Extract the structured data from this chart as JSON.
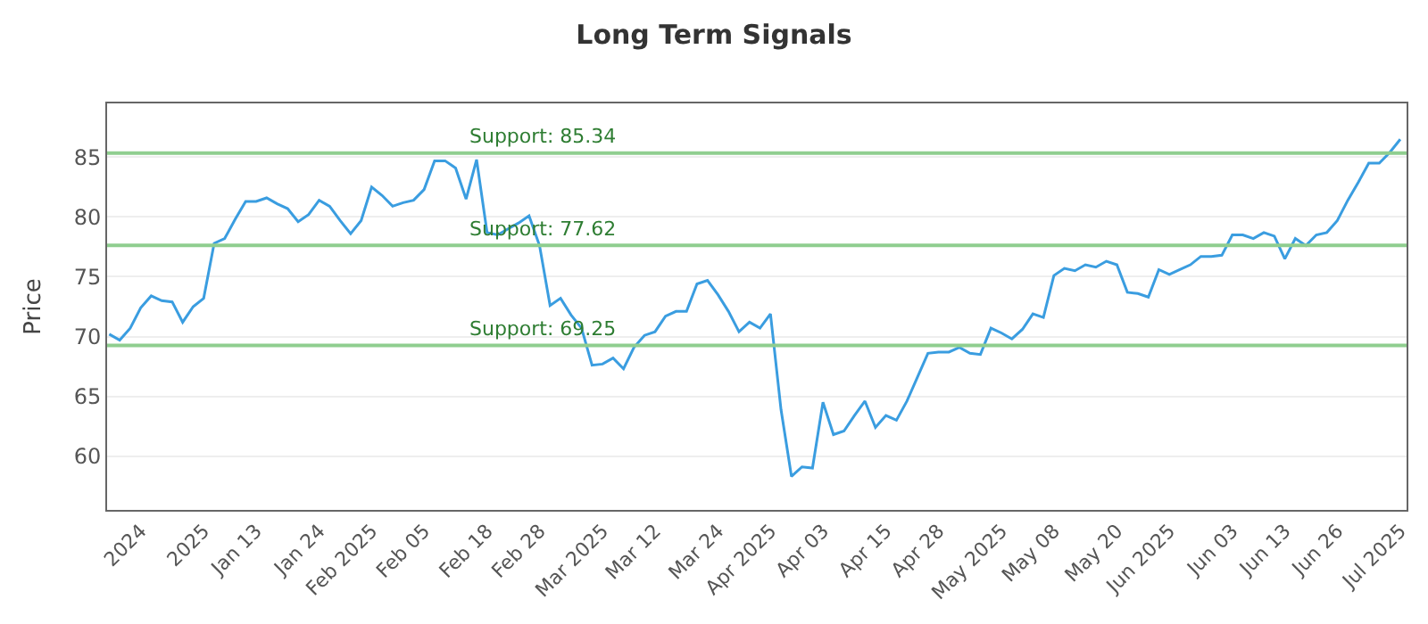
{
  "chart_data": {
    "type": "line",
    "title": "Long Term Signals",
    "ylabel": "Price",
    "categories": [
      null,
      null,
      null,
      "2024",
      null,
      null,
      null,
      null,
      null,
      "2025",
      null,
      null,
      null,
      null,
      "Jan 13",
      null,
      null,
      null,
      null,
      null,
      "Jan 24",
      null,
      null,
      null,
      null,
      "Feb 2025",
      null,
      null,
      null,
      null,
      "Feb 05",
      null,
      null,
      null,
      null,
      null,
      "Feb 18",
      null,
      null,
      null,
      null,
      "Feb 28",
      null,
      null,
      null,
      null,
      null,
      "Mar 2025",
      null,
      null,
      null,
      null,
      "Mar 12",
      null,
      null,
      null,
      null,
      null,
      "Mar 24",
      null,
      null,
      null,
      null,
      "Apr 2025",
      null,
      null,
      null,
      null,
      "Apr 03",
      null,
      null,
      null,
      null,
      null,
      "Apr 15",
      null,
      null,
      null,
      null,
      "Apr 28",
      null,
      null,
      null,
      null,
      null,
      "May 2025",
      null,
      null,
      null,
      null,
      "May 08",
      null,
      null,
      null,
      null,
      null,
      "May 20",
      null,
      null,
      null,
      null,
      "Jun 2025",
      null,
      null,
      null,
      null,
      null,
      "Jun 03",
      null,
      null,
      null,
      null,
      "Jun 13",
      null,
      null,
      null,
      null,
      "Jun 26",
      null,
      null,
      null,
      null,
      null,
      "Jul 2025"
    ],
    "series": [
      {
        "color": "#3a9de0",
        "values": [
          70.2,
          69.7,
          70.7,
          72.4,
          73.4,
          73.0,
          72.9,
          71.2,
          72.5,
          73.2,
          77.8,
          78.2,
          79.8,
          81.3,
          81.3,
          81.6,
          81.1,
          80.7,
          79.6,
          80.2,
          81.4,
          80.9,
          79.7,
          78.6,
          79.7,
          82.5,
          81.8,
          80.9,
          81.2,
          81.4,
          82.3,
          84.7,
          84.7,
          84.1,
          81.5,
          84.8,
          78.7,
          78.5,
          79.0,
          79.5,
          80.1,
          77.6,
          72.6,
          73.2,
          71.8,
          70.7,
          67.6,
          67.7,
          68.2,
          67.3,
          69.1,
          70.1,
          70.4,
          71.7,
          72.1,
          72.1,
          74.4,
          74.7,
          73.5,
          72.1,
          70.4,
          71.2,
          70.7,
          71.9,
          63.9,
          58.3,
          59.1,
          59.0,
          64.5,
          61.8,
          62.1,
          63.4,
          64.6,
          62.4,
          63.4,
          63.0,
          64.6,
          66.6,
          68.6,
          68.7,
          68.7,
          69.1,
          68.6,
          68.5,
          70.7,
          70.3,
          69.8,
          70.6,
          71.9,
          71.6,
          75.1,
          75.7,
          75.5,
          76.0,
          75.8,
          76.3,
          76.0,
          73.7,
          73.6,
          73.3,
          75.6,
          75.2,
          75.6,
          76.0,
          76.7,
          76.7,
          76.8,
          78.5,
          78.5,
          78.2,
          78.7,
          78.4,
          76.5,
          78.2,
          77.6,
          78.5,
          78.7,
          79.7,
          81.4,
          82.9,
          84.5,
          84.5,
          85.4,
          86.5
        ]
      }
    ],
    "ylim": [
      55.5,
      89.5
    ],
    "yticks": [
      60,
      65,
      70,
      75,
      80,
      85
    ],
    "grid": "y",
    "marker": "none",
    "line_style": "solid",
    "ref_lines": [
      {
        "axis": "y",
        "value": 85.34,
        "label": "Support: 85.34",
        "color": "#8fce8f"
      },
      {
        "axis": "y",
        "value": 77.62,
        "label": "Support: 77.62",
        "color": "#8fce8f"
      },
      {
        "axis": "y",
        "value": 69.25,
        "label": "Support: 69.25",
        "color": "#8fce8f"
      }
    ]
  }
}
